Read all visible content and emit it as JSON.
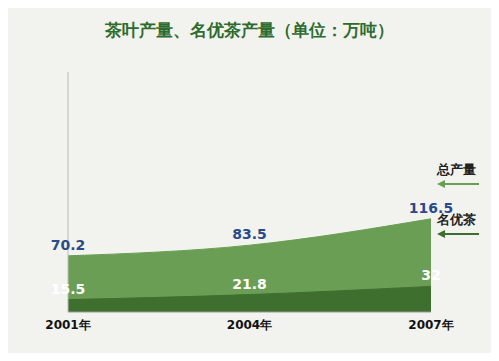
{
  "chart_data": {
    "type": "area",
    "title": "茶叶产量、名优茶产量（单位：万吨）",
    "categories": [
      "2001年",
      "2004年",
      "2007年"
    ],
    "series": [
      {
        "name": "总产量",
        "color": "#6a9e55",
        "values": [
          70.2,
          83.5,
          116.5
        ]
      },
      {
        "name": "名优茶",
        "color": "#3f6f2e",
        "values": [
          15.5,
          21.8,
          32
        ]
      }
    ],
    "ylim": [
      0,
      300
    ],
    "tick_labels": "x",
    "grid": false,
    "stacked": false,
    "data_labels": true,
    "legend": "right"
  }
}
